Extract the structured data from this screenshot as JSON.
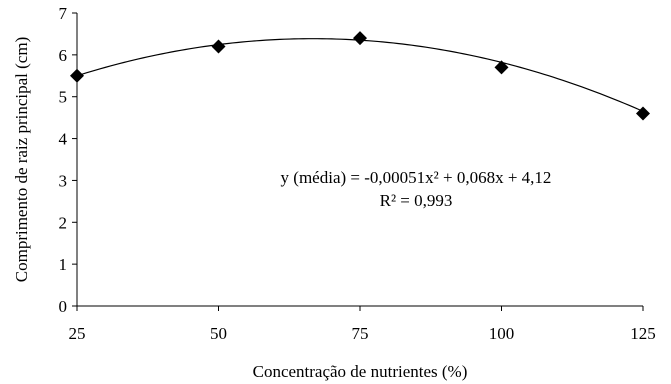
{
  "chart_data": {
    "type": "scatter",
    "xlabel": "Concentração de nutrientes (%)",
    "ylabel": "Comprimento de raiz principal (cm)",
    "xlim": [
      25,
      125
    ],
    "ylim": [
      0,
      7
    ],
    "xticks": [
      25,
      50,
      75,
      100,
      125
    ],
    "yticks": [
      0,
      1,
      2,
      3,
      4,
      5,
      6,
      7
    ],
    "grid": false,
    "series": [
      {
        "marker": "diamond",
        "color": "#000000",
        "x": [
          25,
          50,
          75,
          100,
          125
        ],
        "y": [
          5.5,
          6.2,
          6.4,
          5.7,
          4.6
        ]
      }
    ],
    "trendline": {
      "type": "polynomial",
      "coefficients": {
        "a": -0.00051,
        "b": 0.068,
        "c": 4.12
      },
      "color": "#000000"
    },
    "annotations": {
      "equation": "y (média) = -0,00051x² + 0,068x + 4,12",
      "r_squared": "R² = 0,993"
    }
  }
}
